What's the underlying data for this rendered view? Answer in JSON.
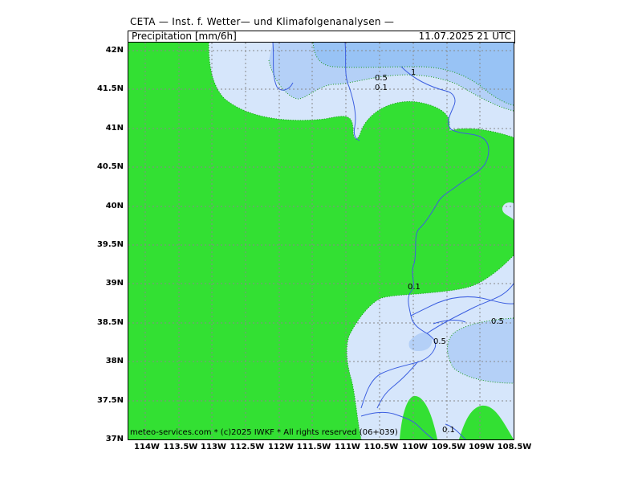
{
  "header": {
    "title": "CETA — Inst. f. Wetter— und Klimafolgenanalysen —",
    "subtitle": "Precipitation [mm/6h]",
    "datetime": "11.07.2025 21 UTC"
  },
  "footer": {
    "credit": "meteo-services.com * (c)2025 IWKF * All rights reserved (06+039)"
  },
  "axes": {
    "lat_labels": [
      "42N",
      "41.5N",
      "41N",
      "40.5N",
      "40N",
      "39.5N",
      "39N",
      "38.5N",
      "38N",
      "37.5N",
      "37N"
    ],
    "lon_labels": [
      "114W",
      "113.5W",
      "113W",
      "112.5W",
      "112W",
      "111.5W",
      "111W",
      "110.5W",
      "110W",
      "109.5W",
      "109W",
      "108.5W"
    ]
  },
  "contour_labels": [
    {
      "text": "1"
    },
    {
      "text": "0.5"
    },
    {
      "text": "0.1"
    },
    {
      "text": "0.1"
    },
    {
      "text": "0.5"
    },
    {
      "text": "0.5"
    },
    {
      "text": "0.1"
    }
  ],
  "colors": {
    "dry": "#33e033",
    "level_0_1": "#d6e6fb",
    "level_0_5": "#b4d0f7",
    "level_1": "#98c3f5",
    "rivers": "#3c5fe0",
    "grid": "#888888"
  }
}
